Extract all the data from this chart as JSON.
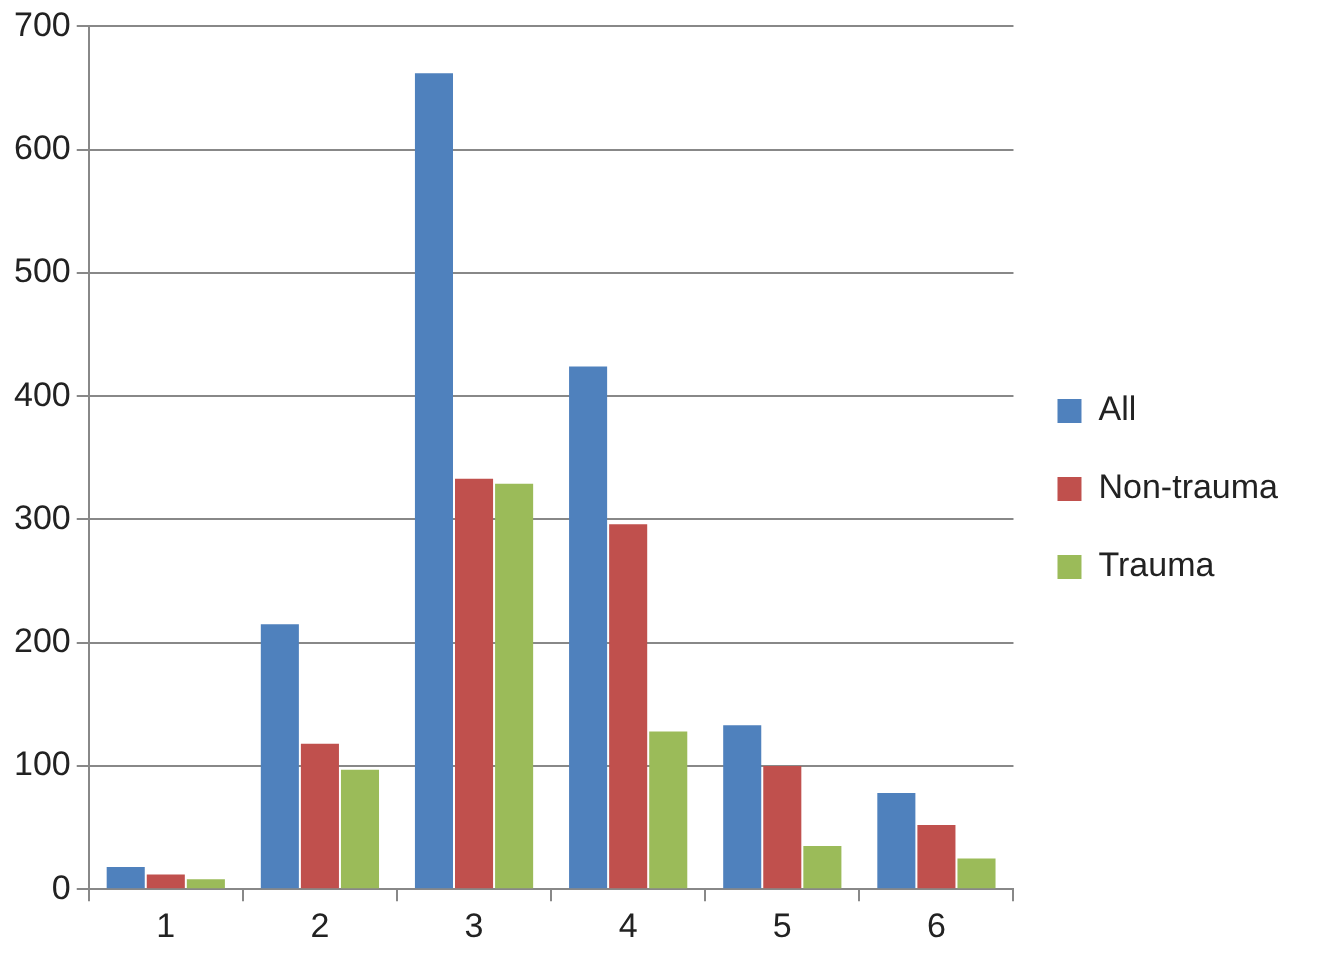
{
  "chart_data": {
    "type": "bar",
    "categories": [
      "1",
      "2",
      "3",
      "4",
      "5",
      "6"
    ],
    "series": [
      {
        "name": "All",
        "color": "#4f81bd",
        "values": [
          18,
          215,
          662,
          424,
          133,
          78
        ]
      },
      {
        "name": "Non-trauma",
        "color": "#c0504d",
        "values": [
          12,
          118,
          333,
          296,
          100,
          52
        ]
      },
      {
        "name": "Trauma",
        "color": "#9bbb59",
        "values": [
          8,
          97,
          329,
          128,
          35,
          25
        ]
      }
    ],
    "ylim": [
      0,
      700
    ],
    "yticks": [
      0,
      100,
      200,
      300,
      400,
      500,
      600,
      700
    ],
    "grid": "y",
    "legend": "right"
  }
}
